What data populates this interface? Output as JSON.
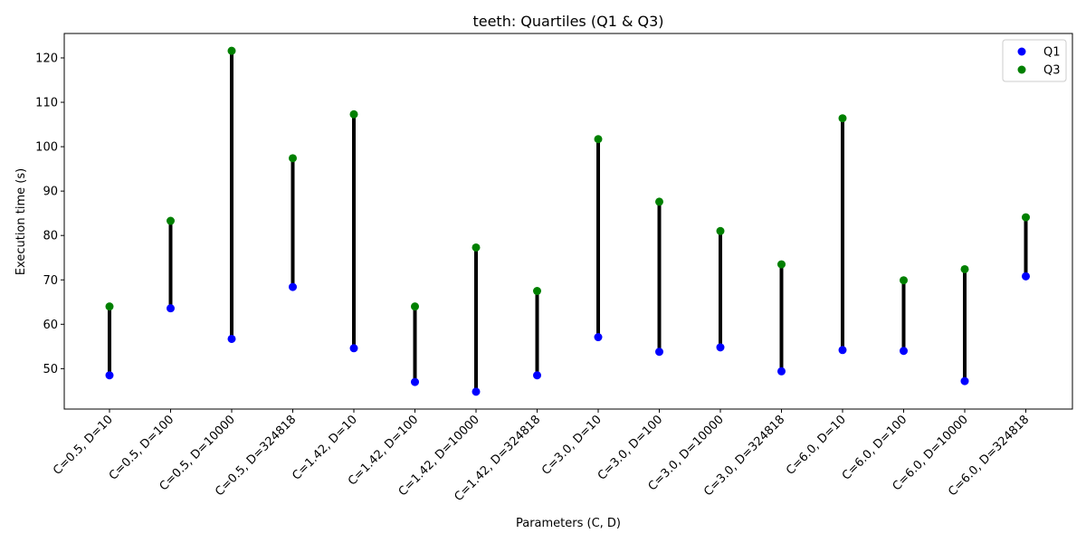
{
  "chart_data": {
    "type": "scatter",
    "title": "teeth: Quartiles (Q1 & Q3)",
    "xlabel": "Parameters (C, D)",
    "ylabel": "Execution time (s)",
    "categories": [
      "C=0.5, D=10",
      "C=0.5, D=100",
      "C=0.5, D=10000",
      "C=0.5, D=324818",
      "C=1.42, D=10",
      "C=1.42, D=100",
      "C=1.42, D=10000",
      "C=1.42, D=324818",
      "C=3.0, D=10",
      "C=3.0, D=100",
      "C=3.0, D=10000",
      "C=3.0, D=324818",
      "C=6.0, D=10",
      "C=6.0, D=100",
      "C=6.0, D=10000",
      "C=6.0, D=324818"
    ],
    "series": [
      {
        "name": "Q1",
        "color": "#0000ff",
        "values": [
          48.5,
          63.6,
          56.7,
          68.4,
          54.6,
          47.0,
          44.8,
          48.5,
          57.1,
          53.8,
          54.8,
          49.4,
          54.2,
          54.0,
          47.2,
          70.8
        ]
      },
      {
        "name": "Q3",
        "color": "#008000",
        "values": [
          64.0,
          83.3,
          121.6,
          97.4,
          107.3,
          64.0,
          77.3,
          67.5,
          101.7,
          87.6,
          81.0,
          73.5,
          106.4,
          69.9,
          72.4,
          84.1
        ]
      }
    ],
    "connector_color": "#000000",
    "ylim": [
      40.9,
      125.5
    ],
    "yticks": [
      50,
      60,
      70,
      80,
      90,
      100,
      110,
      120
    ],
    "grid": false,
    "legend_position": "top-right"
  }
}
